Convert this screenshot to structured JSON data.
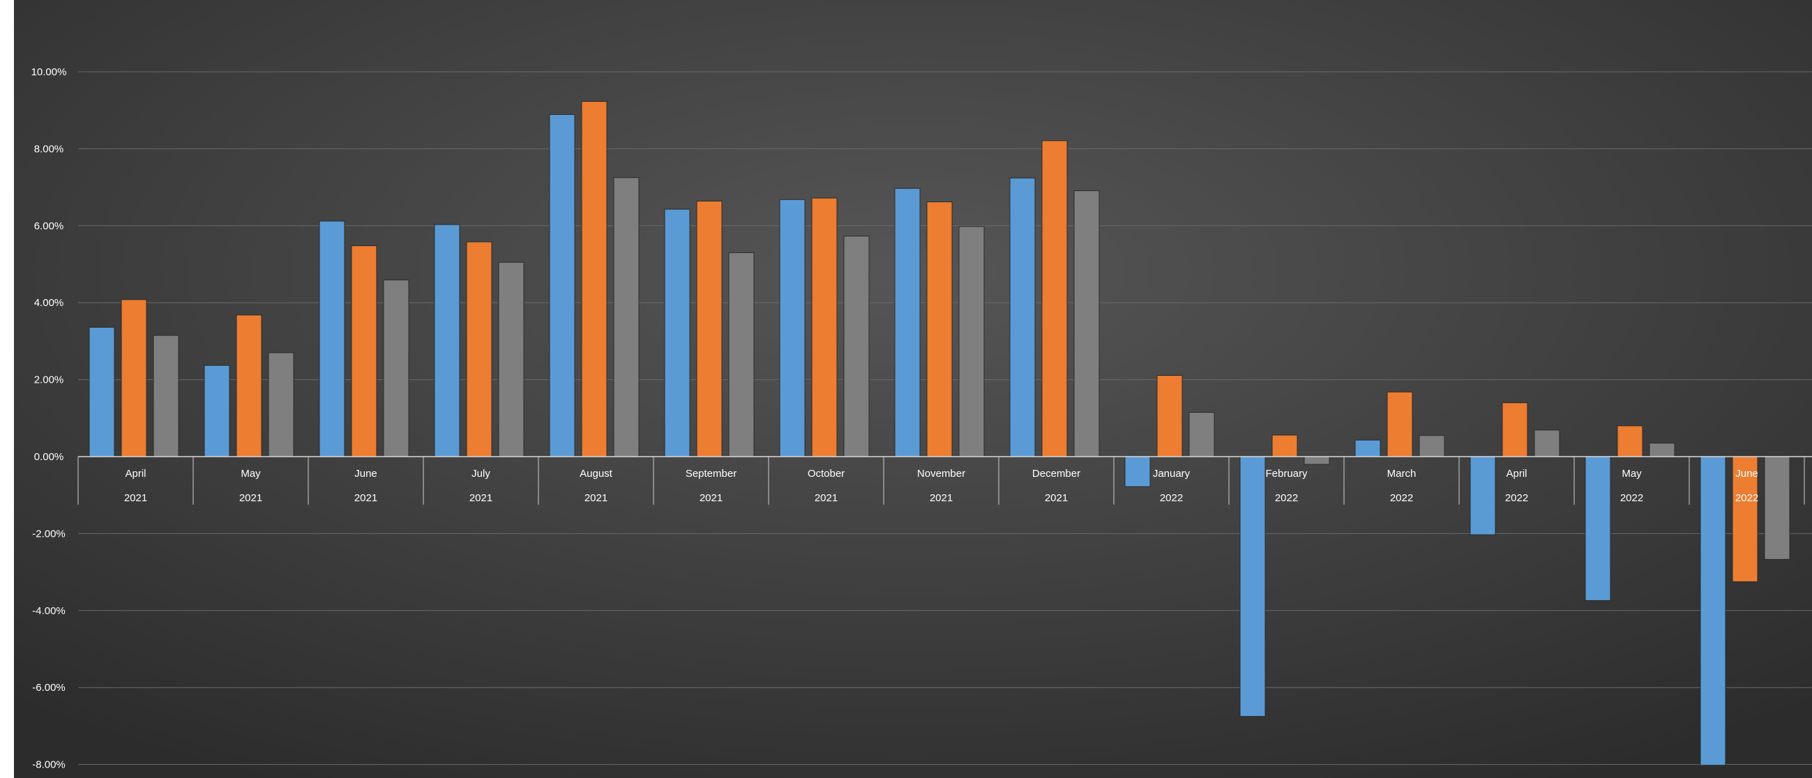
{
  "chart_data": {
    "type": "bar",
    "title": "",
    "xlabel": "",
    "ylabel": "",
    "ylim": [
      -0.08,
      0.1
    ],
    "ytick_values": [
      -0.08,
      -0.06,
      -0.04,
      -0.02,
      0.0,
      0.02,
      0.04,
      0.06,
      0.08,
      0.1
    ],
    "ytick_labels": [
      "-8.00%",
      "-6.00%",
      "-4.00%",
      "-2.00%",
      "0.00%",
      "2.00%",
      "4.00%",
      "6.00%",
      "8.00%",
      "10.00%"
    ],
    "grid": true,
    "legend": "none",
    "categories": [
      {
        "month": "April",
        "year": "2021"
      },
      {
        "month": "May",
        "year": "2021"
      },
      {
        "month": "June",
        "year": "2021"
      },
      {
        "month": "July",
        "year": "2021"
      },
      {
        "month": "August",
        "year": "2021"
      },
      {
        "month": "September",
        "year": "2021"
      },
      {
        "month": "October",
        "year": "2021"
      },
      {
        "month": "November",
        "year": "2021"
      },
      {
        "month": "December",
        "year": "2021"
      },
      {
        "month": "January",
        "year": "2022"
      },
      {
        "month": "February",
        "year": "2022"
      },
      {
        "month": "March",
        "year": "2022"
      },
      {
        "month": "April",
        "year": "2022"
      },
      {
        "month": "May",
        "year": "2022"
      },
      {
        "month": "June",
        "year": "2022"
      }
    ],
    "series": [
      {
        "color": "#5b9bd5",
        "values": [
          0.0336,
          0.0237,
          0.0612,
          0.0603,
          0.0889,
          0.0643,
          0.0668,
          0.0697,
          0.0724,
          -0.0078,
          -0.0675,
          0.0043,
          -0.0203,
          -0.0374,
          -0.0802
        ]
      },
      {
        "color": "#ed7d31",
        "values": [
          0.0408,
          0.0368,
          0.0548,
          0.0558,
          0.0923,
          0.0664,
          0.0672,
          0.0662,
          0.0821,
          0.0211,
          0.0056,
          0.0168,
          0.014,
          0.008,
          -0.0325
        ]
      },
      {
        "color": "#7f7f7f",
        "values": [
          0.0315,
          0.027,
          0.0459,
          0.0505,
          0.0725,
          0.053,
          0.0573,
          0.0598,
          0.0691,
          0.0115,
          -0.002,
          0.0055,
          0.0069,
          0.0035,
          -0.0267
        ]
      }
    ]
  }
}
